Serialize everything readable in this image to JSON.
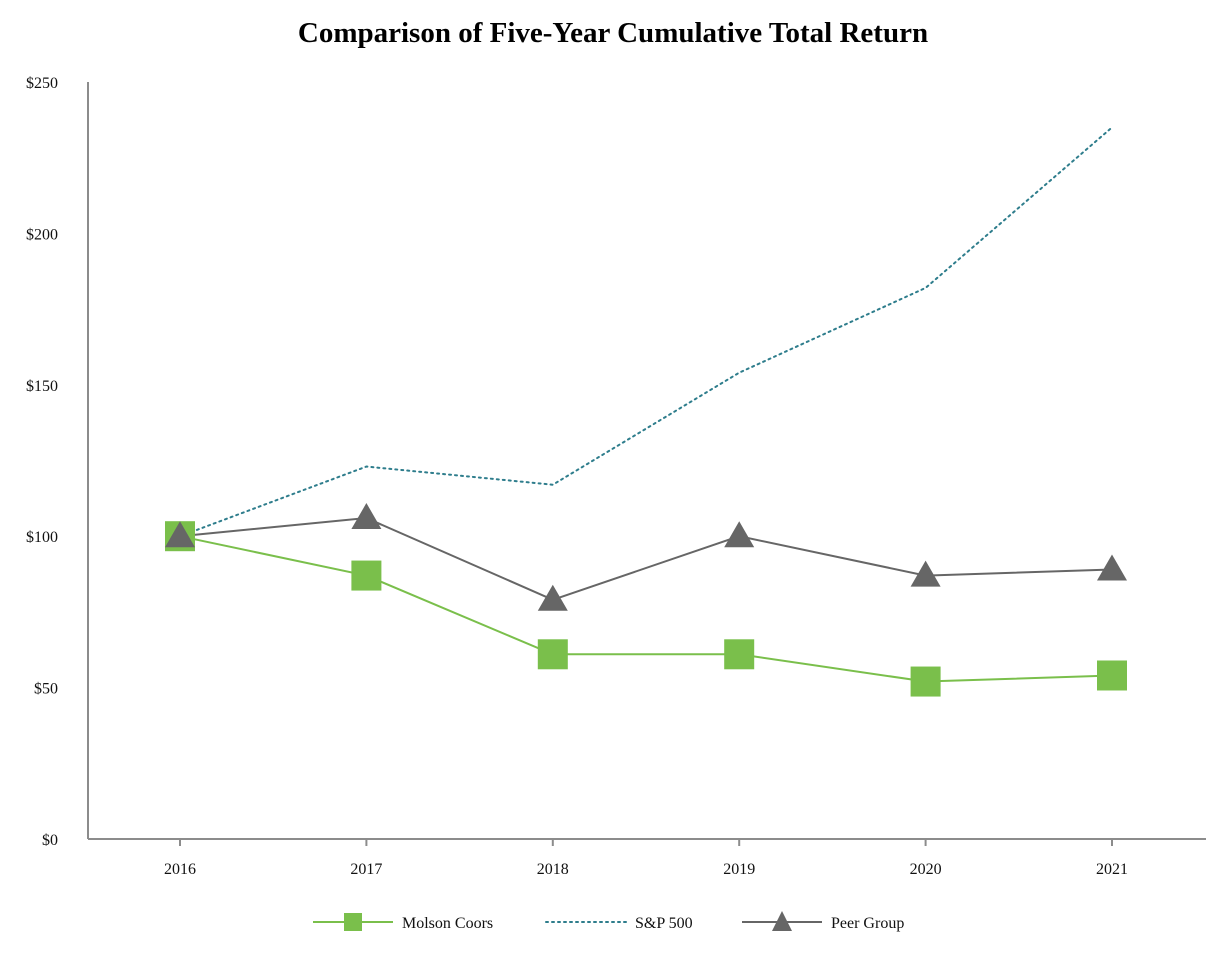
{
  "chart_data": {
    "type": "line",
    "title": "Comparison of Five-Year Cumulative Total Return",
    "xlabel": "",
    "ylabel": "",
    "categories": [
      "2016",
      "2017",
      "2018",
      "2019",
      "2020",
      "2021"
    ],
    "ylim": [
      0,
      250
    ],
    "yticks": [
      0,
      50,
      100,
      150,
      200,
      250
    ],
    "ytick_labels": [
      "$0",
      "$50",
      "$100",
      "$150",
      "$200",
      "$250"
    ],
    "grid": false,
    "legend_position": "bottom-center",
    "series": [
      {
        "name": "Molson Coors",
        "values": [
          100,
          87,
          61,
          61,
          52,
          54
        ],
        "color": "#7ABF4B",
        "line_style": "solid",
        "marker": "square"
      },
      {
        "name": "S&P 500",
        "values": [
          100,
          123,
          117,
          154,
          182,
          235
        ],
        "color": "#2E7D8C",
        "line_style": "dotted",
        "marker": "none"
      },
      {
        "name": "Peer Group",
        "values": [
          100,
          106,
          79,
          100,
          87,
          89
        ],
        "color": "#666666",
        "line_style": "solid",
        "marker": "triangle"
      }
    ]
  }
}
